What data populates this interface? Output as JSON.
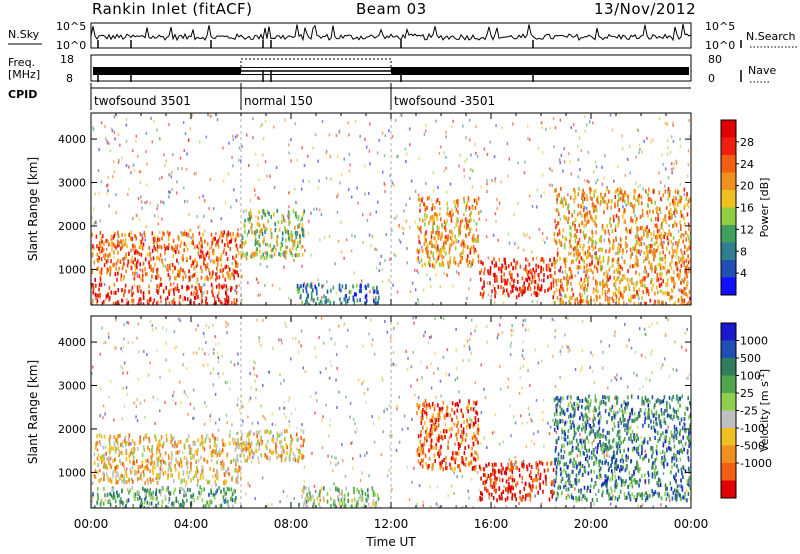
{
  "header": {
    "station": "Rankin Inlet (fitACF)",
    "beam": "Beam 03",
    "date": "13/Nov/2012"
  },
  "noise_panel": {
    "left_label": "N.Sky",
    "right_label": "N.Search",
    "left_ticks": [
      "10^5",
      "10^0"
    ],
    "right_ticks": [
      "10^5",
      "10^0"
    ]
  },
  "freq_panel": {
    "label_line1": "Freq.",
    "label_line2": "[MHz]",
    "left_ticks": [
      "18",
      "8"
    ],
    "right_label": "Nave",
    "right_ticks": [
      "80",
      "0"
    ]
  },
  "cpid": {
    "label": "CPID",
    "segments": [
      {
        "name": "twofsound 3501",
        "start_hour": 0,
        "end_hour": 6
      },
      {
        "name": "normal 150",
        "start_hour": 6,
        "end_hour": 12
      },
      {
        "name": "twofsound -3501",
        "start_hour": 12,
        "end_hour": 24
      }
    ]
  },
  "colors": {
    "power_scale": [
      "#1010ff",
      "#1f4fb4",
      "#2f7f8f",
      "#3f9f5f",
      "#8fcf3f",
      "#f0c020",
      "#f09020",
      "#f06010",
      "#f02010",
      "#e00000"
    ],
    "velocity_scale": [
      "#1818cc",
      "#1f4fb4",
      "#2f7f5f",
      "#4fa84f",
      "#8fcf4f",
      "#c0c0c0",
      "#f0c020",
      "#f09020",
      "#f06010",
      "#e00000"
    ]
  },
  "chart_data": [
    {
      "type": "heatmap",
      "title": "",
      "xlabel": "",
      "ylabel": "Slant Range [km]",
      "xlim": [
        0,
        24
      ],
      "ylim": [
        180,
        4600
      ],
      "yticks": [
        1000,
        2000,
        3000,
        4000
      ],
      "colorbar_label": "Power [dB]",
      "colorbar_ticks": [
        "4",
        "8",
        "12",
        "16",
        "20",
        "24",
        "28"
      ],
      "regions": [
        {
          "t0": 0.0,
          "t1": 6.0,
          "r0": 800,
          "r1": 1900,
          "level": 7
        },
        {
          "t0": 0.0,
          "t1": 5.8,
          "r0": 200,
          "r1": 700,
          "level": 8
        },
        {
          "t0": 6.0,
          "t1": 8.5,
          "r0": 1300,
          "r1": 2400,
          "level": 4
        },
        {
          "t0": 8.2,
          "t1": 11.5,
          "r0": 200,
          "r1": 700,
          "level": 2
        },
        {
          "t0": 13.0,
          "t1": 15.5,
          "r0": 1100,
          "r1": 2700,
          "level": 6
        },
        {
          "t0": 15.5,
          "t1": 18.5,
          "r0": 400,
          "r1": 1300,
          "level": 8
        },
        {
          "t0": 18.5,
          "t1": 24.0,
          "r0": 200,
          "r1": 2900,
          "level": 6
        }
      ]
    },
    {
      "type": "heatmap",
      "title": "",
      "xlabel": "Time UT",
      "ylabel": "Slant Range [km]",
      "xlim": [
        0,
        24
      ],
      "ylim": [
        180,
        4600
      ],
      "yticks": [
        1000,
        2000,
        3000,
        4000
      ],
      "xticks": [
        "00:00",
        "04:00",
        "08:00",
        "12:00",
        "16:00",
        "20:00",
        "00:00"
      ],
      "colorbar_label": "Velocity [m s^-1]",
      "colorbar_ticks": [
        "1000",
        "500",
        "100",
        "25",
        "-25",
        "-100",
        "-500",
        "-1000"
      ],
      "regions": [
        {
          "t0": 0.0,
          "t1": 6.0,
          "r0": 800,
          "r1": 1900,
          "level": 6
        },
        {
          "t0": 0.0,
          "t1": 5.8,
          "r0": 200,
          "r1": 700,
          "level": 3
        },
        {
          "t0": 6.0,
          "t1": 8.5,
          "r0": 1300,
          "r1": 2000,
          "level": 6
        },
        {
          "t0": 8.2,
          "t1": 11.5,
          "r0": 200,
          "r1": 700,
          "level": 4
        },
        {
          "t0": 13.0,
          "t1": 15.5,
          "r0": 1100,
          "r1": 2700,
          "level": 8
        },
        {
          "t0": 15.5,
          "t1": 18.5,
          "r0": 400,
          "r1": 1300,
          "level": 9
        },
        {
          "t0": 18.5,
          "t1": 24.0,
          "r0": 400,
          "r1": 2800,
          "level": 2
        }
      ]
    }
  ]
}
